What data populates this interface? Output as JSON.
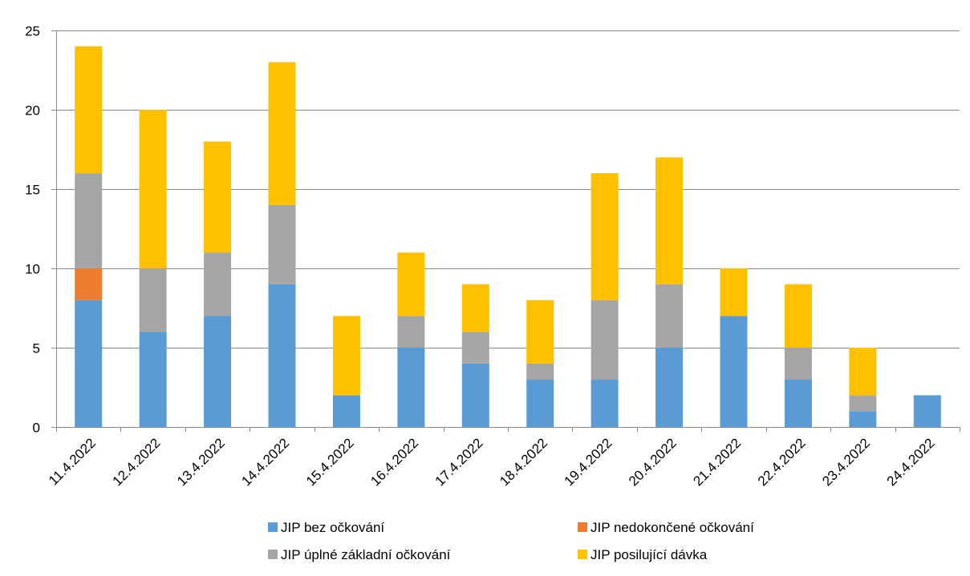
{
  "chart_data": {
    "type": "bar",
    "stacked": true,
    "categories": [
      "11.4.2022",
      "12.4.2022",
      "13.4.2022",
      "14.4.2022",
      "15.4.2022",
      "16.4.2022",
      "17.4.2022",
      "18.4.2022",
      "19.4.2022",
      "20.4.2022",
      "21.4.2022",
      "22.4.2022",
      "23.4.2022",
      "24.4.2022"
    ],
    "series": [
      {
        "name": "JIP bez očkování",
        "color": "#5b9bd5",
        "values": [
          8,
          6,
          7,
          9,
          2,
          5,
          4,
          3,
          3,
          5,
          7,
          3,
          1,
          2
        ]
      },
      {
        "name": "JIP nedokončené očkování",
        "color": "#ed7d31",
        "values": [
          2,
          0,
          0,
          0,
          0,
          0,
          0,
          0,
          0,
          0,
          0,
          0,
          0,
          0
        ]
      },
      {
        "name": "JIP úplné základní očkování",
        "color": "#a5a5a5",
        "values": [
          6,
          4,
          4,
          5,
          0,
          2,
          2,
          1,
          5,
          4,
          0,
          2,
          1,
          0
        ]
      },
      {
        "name": "JIP posilující dávka",
        "color": "#ffc000",
        "values": [
          8,
          10,
          7,
          9,
          5,
          4,
          3,
          4,
          8,
          8,
          3,
          4,
          3,
          0
        ]
      }
    ],
    "ylim": [
      0,
      25
    ],
    "yticks": [
      0,
      5,
      10,
      15,
      20,
      25
    ],
    "grid": true,
    "legend_position": "bottom",
    "title": "",
    "xlabel": "",
    "ylabel": ""
  }
}
